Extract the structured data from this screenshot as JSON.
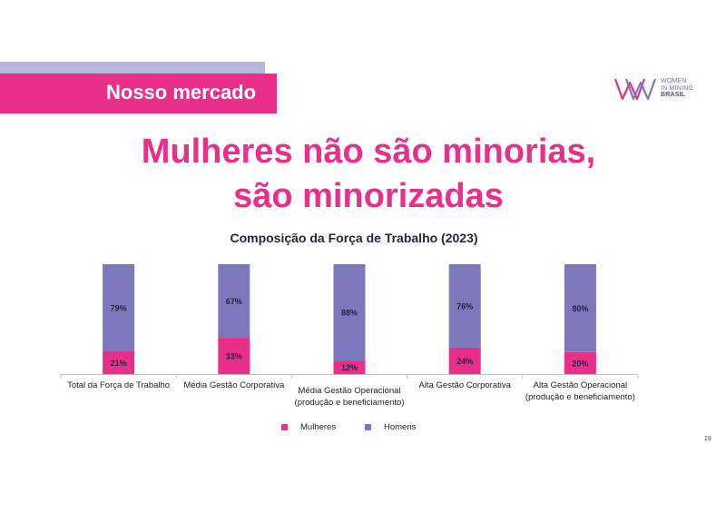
{
  "header": {
    "section_title": "Nosso mercado",
    "logo_line1": "WOMEN",
    "logo_line2": "IN MINING",
    "logo_line3": "BRASIL"
  },
  "headline": {
    "line1": "Mulheres não são minorias,",
    "line2": "são minorizadas"
  },
  "colors": {
    "pink": "#e8308a",
    "lavender": "#7b79bb",
    "lavender_light": "#b9b6dd"
  },
  "chart_data": {
    "type": "bar",
    "stacked": true,
    "title": "Composição da Força de Trabalho (2023)",
    "categories": [
      "Total da Força de Trabalho",
      "Média Gestão Corporativa",
      "Média Gestão Operacional (produção e beneficiamento)",
      "Alta Gestão Corporativa",
      "Alta Gestão Operacional (produção e beneficiamento)"
    ],
    "series": [
      {
        "name": "Mulheres",
        "color": "#e8308a",
        "values": [
          21,
          33,
          12,
          24,
          20
        ]
      },
      {
        "name": "Homens",
        "color": "#7b79bb",
        "values": [
          79,
          67,
          88,
          76,
          80
        ]
      }
    ],
    "value_labels": {
      "Mulheres": [
        "21%",
        "33%",
        "12%",
        "24%",
        "20%"
      ],
      "Homens": [
        "79%",
        "67%",
        "88%",
        "76%",
        "80%"
      ]
    },
    "ylim": [
      0,
      100
    ],
    "grid": false,
    "legend_position": "bottom"
  },
  "page_number": "19"
}
